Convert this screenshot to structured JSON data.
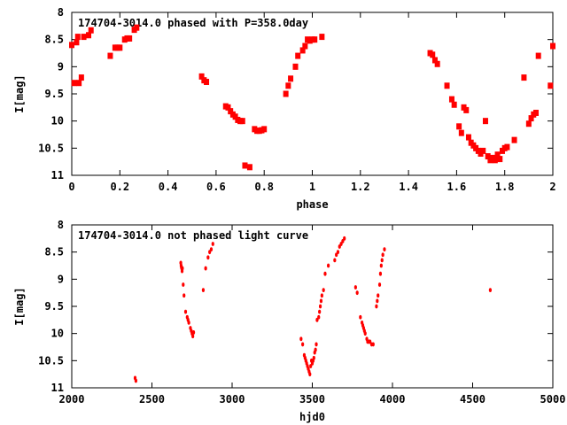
{
  "chart_data": [
    {
      "type": "scatter",
      "title": "174704-3014.0 phased with P=358.0day",
      "xlabel": "phase",
      "ylabel": "I[mag]",
      "xlim": [
        0,
        2
      ],
      "ylim": [
        11,
        8
      ],
      "y_reversed": true,
      "xticks": [
        0,
        0.2,
        0.4,
        0.6,
        0.8,
        1,
        1.2,
        1.4,
        1.6,
        1.8,
        2
      ],
      "xtick_labels": [
        "0",
        "0.2",
        "0.4",
        "0.6",
        "0.8",
        "1",
        "1.2",
        "1.4",
        "1.6",
        "1.8",
        "2"
      ],
      "yticks": [
        8,
        8.5,
        9,
        9.5,
        10,
        10.5,
        11
      ],
      "ytick_labels": [
        "8",
        "8.5",
        "9",
        "9.5",
        "10",
        "10.5",
        "11"
      ],
      "grid": false,
      "series": [
        {
          "color": "#ff0000",
          "marker": "filled-square",
          "x": [
            0.0,
            0.01,
            0.02,
            0.025,
            0.03,
            0.04,
            0.05,
            0.07,
            0.08,
            0.16,
            0.18,
            0.19,
            0.2,
            0.22,
            0.23,
            0.24,
            0.26,
            0.27,
            0.54,
            0.55,
            0.56,
            0.64,
            0.65,
            0.66,
            0.67,
            0.68,
            0.69,
            0.7,
            0.71,
            0.72,
            0.74,
            0.76,
            0.77,
            0.78,
            0.79,
            0.8,
            0.89,
            0.9,
            0.91,
            0.93,
            0.94,
            0.96,
            0.97,
            0.98,
            0.99,
            1.0,
            1.01,
            1.04,
            1.49,
            1.5,
            1.51,
            1.52,
            1.56,
            1.58,
            1.59,
            1.61,
            1.62,
            1.63,
            1.64,
            1.65,
            1.66,
            1.67,
            1.68,
            1.69,
            1.7,
            1.71,
            1.72,
            1.73,
            1.74,
            1.75,
            1.76,
            1.77,
            1.78,
            1.79,
            1.8,
            1.81,
            1.84,
            1.88,
            1.9,
            1.91,
            1.92,
            1.93,
            1.94,
            1.99,
            2.0
          ],
          "y": [
            8.6,
            9.3,
            8.55,
            8.45,
            9.3,
            9.2,
            8.45,
            8.42,
            8.33,
            8.8,
            8.65,
            8.65,
            8.65,
            8.5,
            8.48,
            8.48,
            8.32,
            8.28,
            9.18,
            9.25,
            9.28,
            9.73,
            9.75,
            9.82,
            9.88,
            9.92,
            9.98,
            10.0,
            10.0,
            10.82,
            10.85,
            10.15,
            10.18,
            10.18,
            10.17,
            10.15,
            9.5,
            9.35,
            9.22,
            9.0,
            8.8,
            8.7,
            8.62,
            8.5,
            8.52,
            8.5,
            8.5,
            8.45,
            8.75,
            8.78,
            8.88,
            8.95,
            9.35,
            9.6,
            9.7,
            10.1,
            10.22,
            9.75,
            9.8,
            10.3,
            10.4,
            10.45,
            10.5,
            10.55,
            10.6,
            10.55,
            10.0,
            10.65,
            10.72,
            10.68,
            10.72,
            10.62,
            10.7,
            10.55,
            10.5,
            10.48,
            10.35,
            9.2,
            10.05,
            9.95,
            9.88,
            9.85,
            8.8,
            9.35,
            8.62
          ]
        }
      ]
    },
    {
      "type": "scatter",
      "title": "174704-3014.0 not phased light curve",
      "xlabel": "hjd0",
      "ylabel": "I[mag]",
      "xlim": [
        2000,
        5000
      ],
      "ylim": [
        11,
        8
      ],
      "y_reversed": true,
      "xticks": [
        2000,
        2500,
        3000,
        3500,
        4000,
        4500,
        5000
      ],
      "xtick_labels": [
        "2000",
        "2500",
        "3000",
        "3500",
        "4000",
        "4500",
        "5000"
      ],
      "yticks": [
        8,
        8.5,
        9,
        9.5,
        10,
        10.5,
        11
      ],
      "ytick_labels": [
        "8",
        "8.5",
        "9",
        "9.5",
        "10",
        "10.5",
        "11"
      ],
      "grid": false,
      "series": [
        {
          "color": "#ff0000",
          "marker": "small-dot",
          "x": [
            2395,
            2400,
            2680,
            2682,
            2684,
            2686,
            2688,
            2690,
            2695,
            2700,
            2710,
            2720,
            2725,
            2730,
            2740,
            2745,
            2750,
            2755,
            2760,
            2820,
            2835,
            2850,
            2860,
            2870,
            2880,
            3430,
            3440,
            3450,
            3455,
            3460,
            3465,
            3470,
            3475,
            3480,
            3485,
            3490,
            3495,
            3500,
            3505,
            3510,
            3515,
            3520,
            3525,
            3530,
            3540,
            3545,
            3550,
            3555,
            3560,
            3570,
            3580,
            3600,
            3640,
            3650,
            3660,
            3670,
            3680,
            3690,
            3700,
            3770,
            3780,
            3800,
            3810,
            3815,
            3820,
            3825,
            3830,
            3840,
            3845,
            3850,
            3855,
            3860,
            3870,
            3880,
            3900,
            3905,
            3910,
            3920,
            3925,
            3930,
            3935,
            3940,
            3950,
            4610
          ],
          "y": [
            10.82,
            10.87,
            8.7,
            8.75,
            8.78,
            8.8,
            8.85,
            8.8,
            9.1,
            9.3,
            9.6,
            9.7,
            9.75,
            9.8,
            9.9,
            9.95,
            10.0,
            10.05,
            9.98,
            9.2,
            8.8,
            8.6,
            8.5,
            8.45,
            8.35,
            10.1,
            10.2,
            10.4,
            10.45,
            10.5,
            10.55,
            10.6,
            10.65,
            10.7,
            10.75,
            10.6,
            10.5,
            10.55,
            10.5,
            10.45,
            10.35,
            10.3,
            10.2,
            9.75,
            9.7,
            9.6,
            9.5,
            9.4,
            9.3,
            9.2,
            8.9,
            8.75,
            8.65,
            8.55,
            8.5,
            8.4,
            8.35,
            8.3,
            8.25,
            9.15,
            9.25,
            9.7,
            9.8,
            9.85,
            9.9,
            9.95,
            10.0,
            10.1,
            10.15,
            10.15,
            10.15,
            10.15,
            10.2,
            10.2,
            9.5,
            9.4,
            9.3,
            9.1,
            8.9,
            8.75,
            8.65,
            8.55,
            8.45,
            9.2
          ]
        }
      ]
    }
  ]
}
